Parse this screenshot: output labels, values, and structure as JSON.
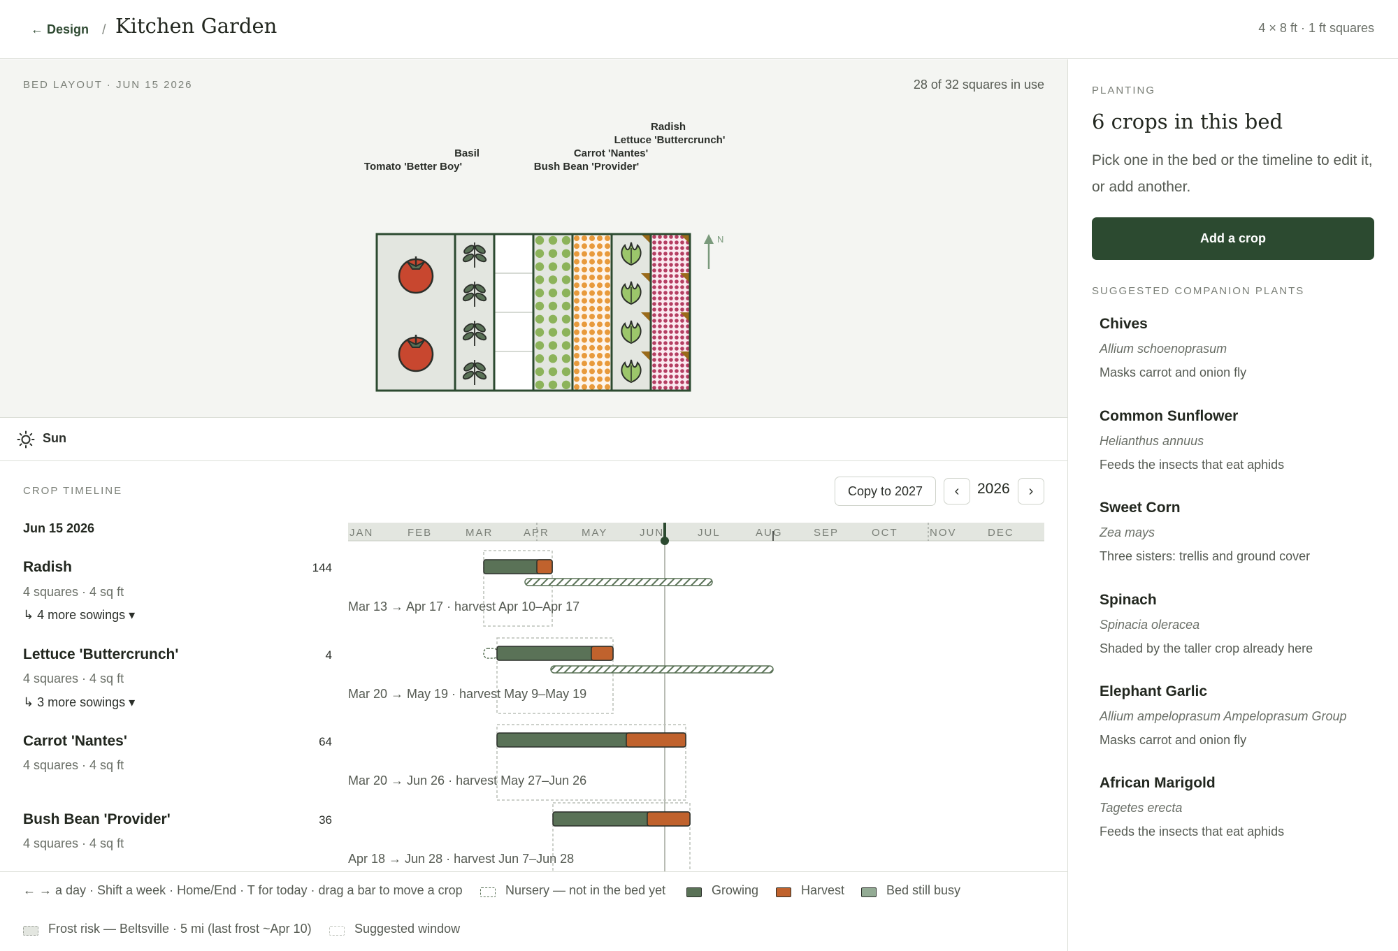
{
  "header": {
    "back_label": "← Design",
    "separator": "/",
    "title": "Kitchen Garden",
    "bed_dims": "4 × 8 ft · 1 ft squares"
  },
  "layout": {
    "heading": "BED LAYOUT · JUN 15 2026",
    "squares_used": "28 of 32 squares in use",
    "compass": "N",
    "labels": {
      "tomato": "Tomato 'Better Boy'",
      "basil": "Basil",
      "bush_bean": "Bush Bean 'Provider'",
      "carrot": "Carrot 'Nantes'",
      "lettuce": "Lettuce 'Buttercrunch'",
      "radish": "Radish"
    }
  },
  "sun": {
    "label": "Sun"
  },
  "timeline": {
    "heading": "CROP TIMELINE",
    "date": "Jun 15 2026",
    "copy_label": "Copy to 2027",
    "prev_label": "‹",
    "next_label": "›",
    "year": "2026",
    "months": [
      "JAN",
      "FEB",
      "MAR",
      "APR",
      "MAY",
      "JUN",
      "JUL",
      "AUG",
      "SEP",
      "OCT",
      "NOV",
      "DEC"
    ],
    "crops": [
      {
        "name": "Radish",
        "meta": "4 squares · 4 sq ft",
        "more": "↳ 4 more sowings ▾",
        "count": "144",
        "summary": "Mar 13 → Apr 17 · harvest Apr 10–Apr 17"
      },
      {
        "name": "Lettuce 'Buttercrunch'",
        "meta": "4 squares · 4 sq ft",
        "more": "↳ 3 more sowings ▾",
        "count": "4",
        "summary": "Mar 20 → May 19 · harvest May 9–May 19"
      },
      {
        "name": "Carrot 'Nantes'",
        "meta": "4 squares · 4 sq ft",
        "more": "",
        "count": "64",
        "summary": "Mar 20 → Jun 26 · harvest May 27–Jun 26"
      },
      {
        "name": "Bush Bean 'Provider'",
        "meta": "4 squares · 4 sq ft",
        "more": "",
        "count": "36",
        "summary": "Apr 18 → Jun 28 · harvest Jun 7–Jun 28"
      }
    ]
  },
  "legend": {
    "keys": "← → a day · Shift a week · Home/End · T for today · drag a bar to move a crop",
    "nursery": "Nursery — not in the bed yet",
    "growing": "Growing",
    "harvest": "Harvest",
    "busy": "Bed still busy",
    "frost": "Frost risk — Beltsville · 5 mi (last frost ~Apr 10)",
    "suggested": "Suggested window"
  },
  "planting": {
    "heading": "PLANTING",
    "count_title": "6 crops in this bed",
    "help": "Pick one in the bed or the timeline to edit it, or add another.",
    "add_label": "Add a crop",
    "companions_heading": "SUGGESTED COMPANION PLANTS",
    "companions": [
      {
        "name": "Chives",
        "latin": "Allium schoenoprasum",
        "note": "Masks carrot and onion fly"
      },
      {
        "name": "Common Sunflower",
        "latin": "Helianthus annuus",
        "note": "Feeds the insects that eat aphids"
      },
      {
        "name": "Sweet Corn",
        "latin": "Zea mays",
        "note": "Three sisters: trellis and ground cover"
      },
      {
        "name": "Spinach",
        "latin": "Spinacia oleracea",
        "note": "Shaded by the taller crop already here"
      },
      {
        "name": "Elephant Garlic",
        "latin": "Allium ampeloprasum Ampeloprasum Group",
        "note": "Masks carrot and onion fly"
      },
      {
        "name": "African Marigold",
        "latin": "Tagetes erecta",
        "note": "Feeds the insects that eat aphids"
      }
    ]
  },
  "colors": {
    "growing": "#5a7257",
    "harvest": "#c0622d",
    "busy": "#93ab94",
    "dark_green": "#2c4a30",
    "tomato": "#c8472f",
    "bean_dot": "#8cb35a",
    "carrot_dot": "#e89a3c",
    "radish_dot": "#b53e62"
  }
}
